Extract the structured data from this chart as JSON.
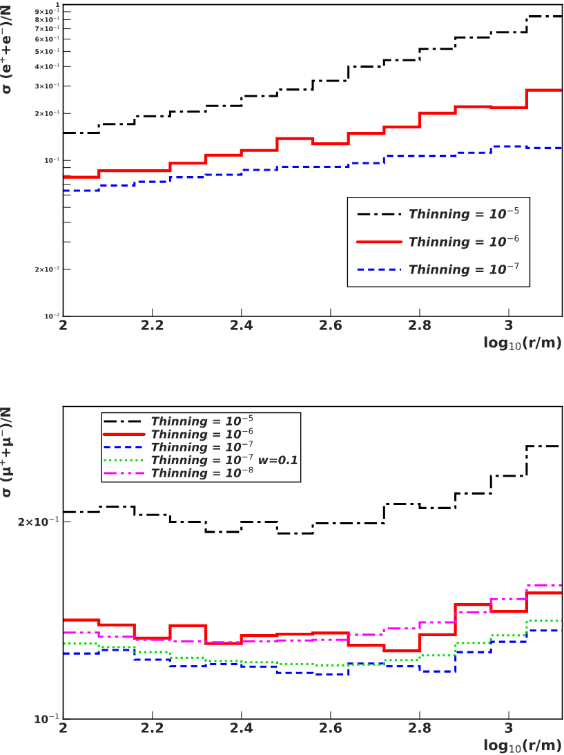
{
  "chart_data": [
    {
      "type": "histogram",
      "ylabel": "σ (e$^{+}$+e$^{−}$)/N̄",
      "xlabel": "log$_{10}$(r/m)",
      "log": "y",
      "legend": "bottom right",
      "grid": false,
      "bins": [
        2.0,
        2.08,
        2.16,
        2.24,
        2.32,
        2.4,
        2.48,
        2.56,
        2.64,
        2.72,
        2.8,
        2.88,
        2.96,
        3.04,
        3.12
      ],
      "xlim": [
        2.0,
        3.12
      ],
      "xticks": [
        {
          "value": 2,
          "label": "2"
        },
        {
          "value": 2.2,
          "label": "2.2"
        },
        {
          "value": 2.4,
          "label": "2.4"
        },
        {
          "value": 2.6,
          "label": "2.6"
        },
        {
          "value": 2.8,
          "label": "2.8"
        },
        {
          "value": 3,
          "label": "3"
        }
      ],
      "ylim": [
        0.01,
        1
      ],
      "yticks": [
        {
          "value": 0.01,
          "label": "10$^{−2}$"
        },
        {
          "value": 0.02,
          "label": "2×10$^{−2}$"
        },
        {
          "value": 0.03,
          "label": null
        },
        {
          "value": 0.04,
          "label": null
        },
        {
          "value": 0.05,
          "label": null
        },
        {
          "value": 0.06,
          "label": null
        },
        {
          "value": 0.07,
          "label": null
        },
        {
          "value": 0.08,
          "label": null
        },
        {
          "value": 0.09,
          "label": null
        },
        {
          "value": 0.1,
          "label": "10$^{−1}$"
        },
        {
          "value": 0.2,
          "label": "2×10$^{−1}$"
        },
        {
          "value": 0.3,
          "label": "3×10$^{−1}$"
        },
        {
          "value": 0.4,
          "label": "4×10$^{−1}$"
        },
        {
          "value": 0.5,
          "label": "5×10$^{−1}$"
        },
        {
          "value": 0.6,
          "label": "6×10$^{−1}$"
        },
        {
          "value": 0.7,
          "label": "7×10$^{−1}$"
        },
        {
          "value": 0.8,
          "label": "8×10$^{−1}$"
        },
        {
          "value": 0.9,
          "label": "9×10$^{−1}$"
        },
        {
          "value": 1,
          "label": "1"
        }
      ],
      "series": [
        {
          "name": "Thinning = 10$^{−5}$",
          "color": "#000000",
          "line_style": "dashdot",
          "values": [
            0.15,
            0.171,
            0.192,
            0.206,
            0.224,
            0.259,
            0.285,
            0.324,
            0.4,
            0.44,
            0.519,
            0.615,
            0.663,
            0.84
          ]
        },
        {
          "name": "Thinning = 10$^{−6}$",
          "color": "#ff0000",
          "line_style": "solid",
          "values": [
            0.078,
            0.086,
            0.086,
            0.096,
            0.108,
            0.116,
            0.138,
            0.128,
            0.149,
            0.164,
            0.201,
            0.221,
            0.218,
            0.282
          ]
        },
        {
          "name": "Thinning = 10$^{−7}$",
          "color": "#0000ff",
          "line_style": "dashed",
          "values": [
            0.064,
            0.069,
            0.073,
            0.078,
            0.081,
            0.087,
            0.091,
            0.091,
            0.096,
            0.107,
            0.107,
            0.112,
            0.123,
            0.12
          ]
        }
      ]
    },
    {
      "type": "histogram",
      "ylabel": "σ (μ$^{+}$+μ$^{−}$)/N̄",
      "xlabel": "log$_{10}$(r/m)",
      "log": "y",
      "legend": "top left",
      "grid": false,
      "bins": [
        2.0,
        2.08,
        2.16,
        2.24,
        2.32,
        2.4,
        2.48,
        2.56,
        2.64,
        2.72,
        2.8,
        2.88,
        2.96,
        3.04,
        3.12
      ],
      "xlim": [
        2.0,
        3.12
      ],
      "xticks": [
        {
          "value": 2,
          "label": "2"
        },
        {
          "value": 2.2,
          "label": "2.2"
        },
        {
          "value": 2.4,
          "label": "2.4"
        },
        {
          "value": 2.6,
          "label": "2.6"
        },
        {
          "value": 2.8,
          "label": "2.8"
        },
        {
          "value": 3,
          "label": "3"
        }
      ],
      "ylim": [
        0.1,
        0.3
      ],
      "yticks": [
        {
          "value": 0.1,
          "label": "10$^{−1}$"
        },
        {
          "value": 0.2,
          "label": "2×10$^{−1}$"
        }
      ],
      "series": [
        {
          "name": "Thinning = 10$^{−5}$",
          "color": "#000000",
          "line_style": "dashdot",
          "values": [
            0.207,
            0.211,
            0.205,
            0.2,
            0.193,
            0.2,
            0.192,
            0.199,
            0.199,
            0.213,
            0.21,
            0.221,
            0.235,
            0.261
          ]
        },
        {
          "name": "Thinning = 10$^{−6}$",
          "color": "#ff0000",
          "line_style": "solid",
          "values": [
            0.1416,
            0.1392,
            0.1329,
            0.1388,
            0.1304,
            0.1341,
            0.1348,
            0.1353,
            0.1296,
            0.1271,
            0.1345,
            0.1496,
            0.146,
            0.1558
          ]
        },
        {
          "name": "Thinning = 10$^{−7}$",
          "color": "#0000ff",
          "line_style": "dashed",
          "values": [
            0.1259,
            0.1275,
            0.1232,
            0.1204,
            0.1213,
            0.1202,
            0.1176,
            0.117,
            0.1216,
            0.1204,
            0.1182,
            0.1265,
            0.1312,
            0.1365
          ]
        },
        {
          "name": "Thinning = 10$^{−7}$ w=0.1",
          "color": "#00dd00",
          "line_style": "dotted",
          "values": [
            0.1304,
            0.1288,
            0.1265,
            0.124,
            0.1226,
            0.1221,
            0.1213,
            0.1208,
            0.1211,
            0.123,
            0.1251,
            0.1307,
            0.1342,
            0.1413
          ]
        },
        {
          "name": "Thinning = 10$^{−8}$",
          "color": "#ff00ff",
          "line_style": "dashdotdot",
          "values": [
            0.1355,
            0.1336,
            0.1321,
            0.1314,
            0.131,
            0.1314,
            0.1318,
            0.1321,
            0.1345,
            0.1375,
            0.1405,
            0.1455,
            0.1525,
            0.16
          ]
        }
      ]
    }
  ]
}
